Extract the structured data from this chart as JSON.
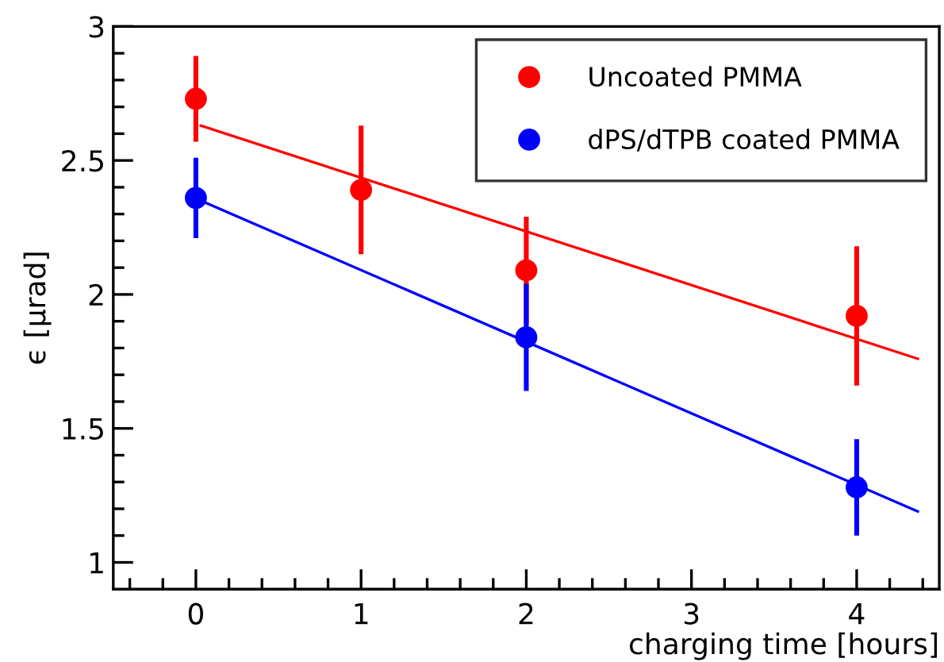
{
  "chart_data": {
    "type": "scatter",
    "xlabel": "charging time [hours]",
    "ylabel": "ϵ [μrad]",
    "xlim": [
      -0.5,
      4.5
    ],
    "xticks": [
      {
        "value": -0.4,
        "label": null
      },
      {
        "value": -0.2,
        "label": null
      },
      0,
      {
        "value": 0.2,
        "label": null
      },
      {
        "value": 0.4,
        "label": null
      },
      {
        "value": 0.6,
        "label": null
      },
      {
        "value": 0.8,
        "label": null
      },
      1,
      {
        "value": 1.2,
        "label": null
      },
      {
        "value": 1.4,
        "label": null
      },
      {
        "value": 1.6,
        "label": null
      },
      {
        "value": 1.8,
        "label": null
      },
      2,
      {
        "value": 2.2,
        "label": null
      },
      {
        "value": 2.4,
        "label": null
      },
      {
        "value": 2.6,
        "label": null
      },
      {
        "value": 2.8,
        "label": null
      },
      3,
      {
        "value": 3.2,
        "label": null
      },
      {
        "value": 3.4,
        "label": null
      },
      {
        "value": 3.6,
        "label": null
      },
      {
        "value": 3.8,
        "label": null
      },
      4,
      {
        "value": 4.2,
        "label": null
      },
      {
        "value": 4.4,
        "label": null
      }
    ],
    "ylim": [
      0.9,
      3
    ],
    "yticks": [
      1,
      {
        "value": 1.1,
        "label": null
      },
      {
        "value": 1.2,
        "label": null
      },
      {
        "value": 1.3,
        "label": null
      },
      {
        "value": 1.4,
        "label": null
      },
      1.5,
      {
        "value": 1.6,
        "label": null
      },
      {
        "value": 1.7,
        "label": null
      },
      {
        "value": 1.8,
        "label": null
      },
      {
        "value": 1.9,
        "label": null
      },
      2,
      {
        "value": 2.1,
        "label": null
      },
      {
        "value": 2.2,
        "label": null
      },
      {
        "value": 2.3,
        "label": null
      },
      {
        "value": 2.4,
        "label": null
      },
      2.5,
      {
        "value": 2.6,
        "label": null
      },
      {
        "value": 2.7,
        "label": null
      },
      {
        "value": 2.8,
        "label": null
      },
      {
        "value": 2.9,
        "label": null
      },
      3
    ],
    "marker": "circle",
    "grid": false,
    "legend": "top right",
    "series": [
      {
        "name": "Uncoated PMMA",
        "color": "#ff0000",
        "x": [
          0,
          1,
          2,
          4
        ],
        "values": [
          2.73,
          2.39,
          2.09,
          1.92
        ],
        "errors": [
          0.16,
          0.24,
          0.2,
          0.26
        ]
      },
      {
        "name": "dPS/dTPB coated PMMA",
        "color": "#0000ff",
        "x": [
          0,
          2,
          4
        ],
        "values": [
          2.36,
          1.84,
          1.28
        ],
        "errors": [
          0.15,
          0.2,
          0.18
        ]
      },
      {
        "type": "line",
        "marker": "none",
        "color": "#ff0000",
        "x": [
          0.03,
          4.37
        ],
        "values": [
          2.63,
          1.76
        ]
      },
      {
        "type": "line",
        "marker": "none",
        "color": "#0000ff",
        "x": [
          0.03,
          4.37
        ],
        "values": [
          2.35,
          1.19
        ]
      }
    ]
  }
}
